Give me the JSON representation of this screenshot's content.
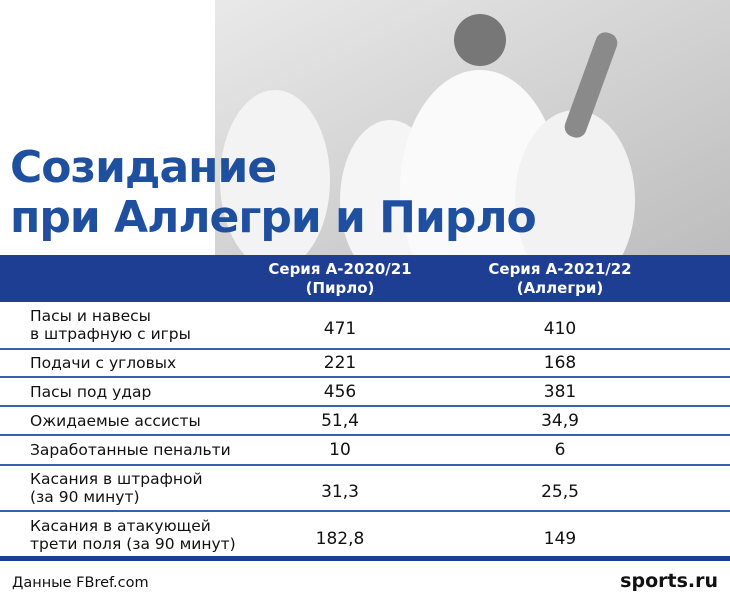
{
  "header": {
    "title_line1": "Созидание",
    "title_line2": "при Аллегри и Пирло"
  },
  "table": {
    "columns": [
      [
        "Серия А-2020/21",
        "(Пирло)"
      ],
      [
        "Серия А-2021/22",
        "(Аллегри)"
      ]
    ],
    "rows": [
      [
        [
          "Пасы и навесы",
          "в штрафную с игры"
        ],
        "471",
        "410"
      ],
      [
        [
          "Подачи с угловых"
        ],
        "221",
        "168"
      ],
      [
        [
          "Пасы под удар"
        ],
        "456",
        "381"
      ],
      [
        [
          "Ожидаемые ассисты"
        ],
        "51,4",
        "34,9"
      ],
      [
        [
          "Заработанные пенальти"
        ],
        "10",
        "6"
      ],
      [
        [
          "Касания в штрафной",
          "(за 90 минут)"
        ],
        "31,3",
        "25,5"
      ],
      [
        [
          "Касания в атакующей",
          "трети поля (за 90 минут)"
        ],
        "182,8",
        "149"
      ]
    ]
  },
  "footer": {
    "source": "Данные FBref.com",
    "logo": "sports.ru"
  }
}
